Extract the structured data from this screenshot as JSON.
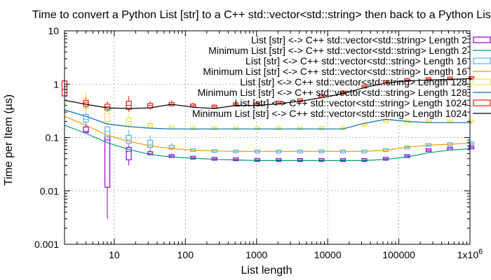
{
  "chart_data": {
    "type": "line",
    "title": "Time to convert a Python List [str] to a C++ std::vector<std::string> then back to a Python List",
    "xlabel": "List length",
    "ylabel": "Time per Item (µs)",
    "x_scale": "log",
    "y_scale": "log",
    "xlim": [
      2,
      1000000
    ],
    "ylim": [
      0.001,
      10
    ],
    "grid": true,
    "legend_position": "top-right",
    "x_ticks": [
      {
        "value": 10,
        "label": "10"
      },
      {
        "value": 100,
        "label": "100"
      },
      {
        "value": 1000,
        "label": "1000"
      },
      {
        "value": 10000,
        "label": "10000"
      },
      {
        "value": 100000,
        "label": "100000"
      },
      {
        "value": 1000000,
        "label": "1x10",
        "sup": "6"
      }
    ],
    "y_ticks": [
      {
        "value": 0.001,
        "label": "0.001"
      },
      {
        "value": 0.01,
        "label": "0.01"
      },
      {
        "value": 0.1,
        "label": "0.1"
      },
      {
        "value": 1,
        "label": "1"
      },
      {
        "value": 10,
        "label": "10"
      }
    ],
    "series": [
      {
        "name": "List [str] <-> C++ std::vector<std::string> Length 2",
        "style": "box",
        "color": "#9400d3",
        "x": [
          4,
          8,
          16,
          32,
          64,
          128,
          256,
          512,
          1024,
          2048,
          4096,
          8192,
          16384,
          32768,
          65536,
          131072,
          262144,
          524288,
          1048576
        ],
        "y": [
          0.13,
          0.09,
          0.055,
          0.05,
          0.045,
          0.042,
          0.04,
          0.039,
          0.038,
          0.038,
          0.038,
          0.038,
          0.038,
          0.038,
          0.04,
          0.045,
          0.058,
          0.062,
          0.065
        ],
        "low": [
          0.12,
          0.003,
          0.03,
          0.046,
          0.042,
          0.041,
          0.039,
          0.038,
          0.037,
          0.037,
          0.037,
          0.037,
          0.037,
          0.037,
          0.039,
          0.044,
          0.056,
          0.06,
          0.062
        ],
        "high": [
          0.2,
          0.16,
          0.08,
          0.06,
          0.05,
          0.044,
          0.041,
          0.04,
          0.039,
          0.039,
          0.039,
          0.039,
          0.039,
          0.039,
          0.041,
          0.046,
          0.06,
          0.066,
          0.068
        ]
      },
      {
        "name": "Minimum List [str] <-> C++ std::vector<std::string> Length 2",
        "style": "line",
        "color": "#009e73",
        "x": [
          2,
          4,
          8,
          16,
          32,
          64,
          128,
          256,
          512,
          1024,
          2048,
          4096,
          8192,
          16384,
          32768,
          65536,
          131072,
          262144,
          524288,
          1048576
        ],
        "y": [
          0.17,
          0.12,
          0.08,
          0.06,
          0.048,
          0.043,
          0.041,
          0.039,
          0.038,
          0.037,
          0.037,
          0.037,
          0.037,
          0.037,
          0.037,
          0.039,
          0.043,
          0.052,
          0.058,
          0.062
        ]
      },
      {
        "name": "List [str] <-> C++ std::vector<std::string> Length 16",
        "style": "box",
        "color": "#56b4e9",
        "x": [
          4,
          8,
          16,
          32,
          64,
          128,
          256,
          512,
          1024,
          2048,
          4096,
          8192,
          16384,
          32768,
          65536,
          131072,
          262144,
          524288,
          1048576
        ],
        "y": [
          0.22,
          0.13,
          0.09,
          0.075,
          0.065,
          0.058,
          0.056,
          0.055,
          0.055,
          0.055,
          0.055,
          0.055,
          0.055,
          0.055,
          0.058,
          0.065,
          0.073,
          0.075,
          0.078
        ],
        "low": [
          0.18,
          0.09,
          0.07,
          0.06,
          0.058,
          0.056,
          0.055,
          0.054,
          0.054,
          0.054,
          0.054,
          0.054,
          0.054,
          0.054,
          0.056,
          0.063,
          0.07,
          0.072,
          0.074
        ],
        "high": [
          0.35,
          0.2,
          0.14,
          0.11,
          0.08,
          0.062,
          0.058,
          0.057,
          0.057,
          0.057,
          0.057,
          0.057,
          0.057,
          0.057,
          0.06,
          0.067,
          0.076,
          0.078,
          0.082
        ]
      },
      {
        "name": "Minimum List [str] <-> C++ std::vector<std::string> Length 16",
        "style": "line",
        "color": "#e69f00",
        "x": [
          2,
          4,
          8,
          16,
          32,
          64,
          128,
          256,
          512,
          1024,
          2048,
          4096,
          8192,
          16384,
          32768,
          65536,
          131072,
          262144,
          524288,
          1048576
        ],
        "y": [
          0.25,
          0.17,
          0.11,
          0.085,
          0.07,
          0.062,
          0.058,
          0.056,
          0.055,
          0.055,
          0.055,
          0.055,
          0.055,
          0.055,
          0.055,
          0.058,
          0.066,
          0.072,
          0.075,
          0.078
        ]
      },
      {
        "name": "List [str] <-> C++ std::vector<std::string> Length 128",
        "style": "box",
        "color": "#f0e442",
        "x": [
          4,
          8,
          16,
          32,
          64,
          128,
          256,
          512,
          1024,
          2048,
          4096,
          8192,
          16384,
          32768,
          65536,
          131072,
          262144,
          524288,
          1048576
        ],
        "y": [
          0.45,
          0.28,
          0.2,
          0.17,
          0.155,
          0.15,
          0.15,
          0.15,
          0.15,
          0.15,
          0.15,
          0.15,
          0.15,
          0.17,
          0.2,
          0.2,
          0.2,
          0.2,
          0.2
        ],
        "low": [
          0.3,
          0.16,
          0.15,
          0.145,
          0.145,
          0.145,
          0.145,
          0.145,
          0.145,
          0.145,
          0.145,
          0.145,
          0.145,
          0.16,
          0.19,
          0.19,
          0.19,
          0.19,
          0.19
        ],
        "high": [
          0.7,
          0.4,
          0.28,
          0.2,
          0.17,
          0.16,
          0.16,
          0.16,
          0.16,
          0.16,
          0.16,
          0.16,
          0.16,
          0.18,
          0.21,
          0.22,
          0.21,
          0.21,
          0.21
        ]
      },
      {
        "name": "Minimum List [str] <-> C++ std::vector<std::string> Length 128",
        "style": "line",
        "color": "#0072b2",
        "x": [
          2,
          4,
          8,
          16,
          32,
          64,
          128,
          256,
          512,
          1024,
          2048,
          4096,
          8192,
          16384,
          32768,
          65536,
          131072,
          262144,
          524288,
          1048576
        ],
        "y": [
          0.33,
          0.25,
          0.18,
          0.16,
          0.15,
          0.145,
          0.145,
          0.145,
          0.145,
          0.145,
          0.145,
          0.145,
          0.145,
          0.145,
          0.185,
          0.22,
          0.2,
          0.19,
          0.19,
          0.19
        ]
      },
      {
        "name": "List [str] <-> C++ std::vector<std::string> Length 1024",
        "style": "box",
        "color": "#e51e10",
        "x": [
          2,
          4,
          8,
          16,
          32,
          64,
          128,
          256,
          512,
          1024,
          2048,
          4096,
          8192,
          16384,
          32768,
          65536,
          131072,
          262144,
          524288,
          1048576
        ],
        "y": [
          0.8,
          0.45,
          0.38,
          0.4,
          0.4,
          0.42,
          0.4,
          0.38,
          0.42,
          0.42,
          0.45,
          0.5,
          0.6,
          0.7,
          0.9,
          1.1,
          1.2,
          1.25,
          1.28,
          1.3
        ],
        "low": [
          0.5,
          0.35,
          0.3,
          0.3,
          0.33,
          0.38,
          0.36,
          0.35,
          0.38,
          0.4,
          0.42,
          0.47,
          0.55,
          0.65,
          0.85,
          1.05,
          1.15,
          1.2,
          1.22,
          1.25
        ],
        "high": [
          1.8,
          0.55,
          0.48,
          0.6,
          0.48,
          0.5,
          0.45,
          0.42,
          0.47,
          0.45,
          0.5,
          0.55,
          0.65,
          0.78,
          0.95,
          1.15,
          1.3,
          1.32,
          1.35,
          1.4
        ]
      },
      {
        "name": "Minimum List [str] <-> C++ std::vector<std::string> Length 1024",
        "style": "line",
        "color": "#000000",
        "x": [
          2,
          4,
          8,
          16,
          32,
          64,
          128,
          256,
          512,
          1024,
          2048,
          4096,
          8192,
          16384,
          32768,
          65536,
          131072,
          262144,
          524288,
          1048576
        ],
        "y": [
          0.5,
          0.42,
          0.36,
          0.35,
          0.36,
          0.42,
          0.37,
          0.35,
          0.4,
          0.4,
          0.43,
          0.48,
          0.56,
          0.66,
          0.86,
          1.05,
          1.15,
          1.2,
          1.23,
          1.27
        ]
      }
    ]
  }
}
